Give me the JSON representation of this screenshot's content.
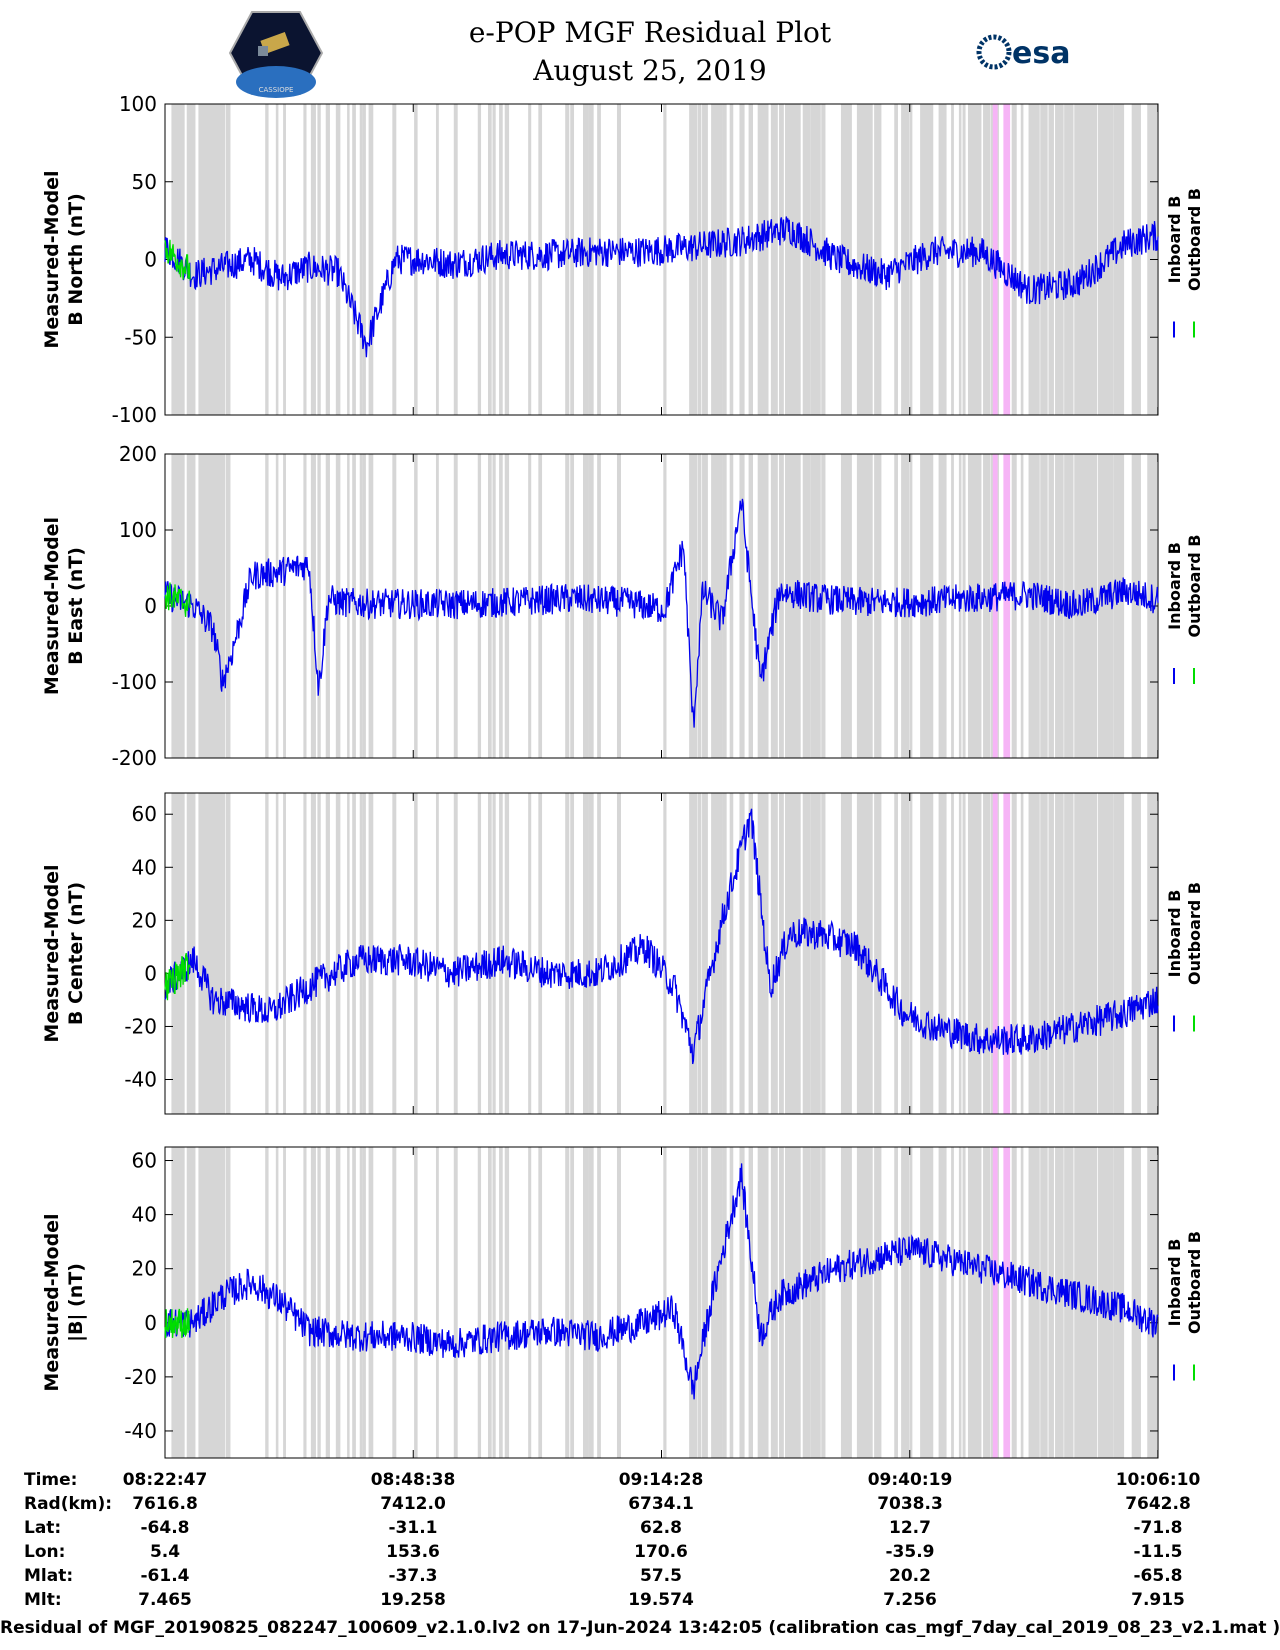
{
  "header": {
    "title_line1": "e-POP MGF Residual Plot",
    "title_line2": "August 25, 2019",
    "left_logo": "cassiope-satellite-logo",
    "right_logo": "esa-logo",
    "right_logo_text": "esa",
    "left_logo_text": "CASSIOPE"
  },
  "colors": {
    "inboard": "#0000ee",
    "outboard": "#00dd00",
    "gap": "#d6d6d6",
    "event": "#f6b4f6"
  },
  "chart_data": [
    {
      "type": "line",
      "title": "",
      "ylabel_line1": "Measured-Model",
      "ylabel_line2": "B North (nT)",
      "ylim": [
        -100,
        100
      ],
      "yticks": [
        -100,
        -50,
        0,
        50,
        100
      ],
      "series": [
        {
          "name": "Inboard B"
        },
        {
          "name": "Outboard B"
        }
      ],
      "x_minutes": [
        0,
        3,
        6,
        9,
        12,
        15,
        18,
        21,
        24,
        27,
        30,
        35,
        40,
        45,
        50,
        55,
        60,
        65,
        70,
        75,
        80,
        85,
        90,
        95,
        100,
        103
      ],
      "values": [
        8,
        -10,
        -5,
        0,
        -12,
        -5,
        -8,
        -55,
        0,
        0,
        -3,
        3,
        3,
        5,
        5,
        8,
        12,
        20,
        0,
        -10,
        5,
        5,
        -20,
        -15,
        10,
        15
      ]
    },
    {
      "type": "line",
      "ylabel_line1": "Measured-Model",
      "ylabel_line2": "B East (nT)",
      "ylim": [
        -200,
        200
      ],
      "yticks": [
        -200,
        -100,
        0,
        100,
        200
      ],
      "series": [
        {
          "name": "Inboard B"
        },
        {
          "name": "Outboard B"
        }
      ],
      "x_minutes": [
        0,
        3,
        5,
        6,
        7,
        9,
        12,
        15,
        16,
        17,
        18,
        21,
        24,
        30,
        36,
        42,
        48,
        52,
        54,
        55,
        56,
        58,
        60,
        62,
        64,
        68,
        72,
        78,
        84,
        90,
        95,
        100,
        103
      ],
      "values": [
        15,
        0,
        -30,
        -100,
        -60,
        40,
        45,
        55,
        -110,
        10,
        5,
        3,
        3,
        2,
        5,
        10,
        5,
        -5,
        80,
        -160,
        20,
        -20,
        140,
        -100,
        20,
        10,
        5,
        5,
        10,
        15,
        0,
        20,
        10
      ]
    },
    {
      "type": "line",
      "ylabel_line1": "Measured-Model",
      "ylabel_line2": "B Center (nT)",
      "ylim": [
        -53,
        68
      ],
      "yticks": [
        -40,
        -20,
        0,
        20,
        40,
        60
      ],
      "series": [
        {
          "name": "Inboard B"
        },
        {
          "name": "Outboard B"
        }
      ],
      "x_minutes": [
        0,
        3,
        5,
        8,
        11,
        15,
        20,
        25,
        30,
        35,
        40,
        45,
        50,
        53,
        55,
        58,
        61,
        63,
        65,
        68,
        72,
        77,
        80,
        85,
        90,
        95,
        100,
        103
      ],
      "values": [
        -5,
        5,
        -10,
        -12,
        -15,
        -5,
        5,
        5,
        0,
        5,
        0,
        0,
        10,
        -5,
        -30,
        20,
        60,
        -5,
        15,
        15,
        10,
        -15,
        -20,
        -25,
        -25,
        -20,
        -15,
        -10
      ]
    },
    {
      "type": "line",
      "ylabel_line1": "Measured-Model",
      "ylabel_line2": "|B| (nT)",
      "ylim": [
        -50,
        65
      ],
      "yticks": [
        -40,
        -20,
        0,
        20,
        40,
        60
      ],
      "series": [
        {
          "name": "Inboard B"
        },
        {
          "name": "Outboard B"
        }
      ],
      "x_minutes": [
        0,
        3,
        6,
        9,
        12,
        15,
        20,
        25,
        30,
        35,
        40,
        45,
        50,
        53,
        55,
        57,
        60,
        62,
        64,
        67,
        70,
        75,
        78,
        80,
        85,
        90,
        95,
        100,
        103
      ],
      "values": [
        0,
        0,
        10,
        15,
        8,
        -3,
        -5,
        -5,
        -8,
        -5,
        -3,
        -5,
        0,
        5,
        -25,
        10,
        55,
        -5,
        10,
        15,
        20,
        25,
        27,
        25,
        20,
        15,
        10,
        5,
        0
      ]
    }
  ],
  "table": {
    "row_labels": [
      "Time:",
      "Rad(km):",
      "Lat:",
      "Lon:",
      "Mlat:",
      "Mlt:"
    ],
    "columns": [
      {
        "time": "08:22:47",
        "rad": "7616.8",
        "lat": "-64.8",
        "lon": "5.4",
        "mlat": "-61.4",
        "mlt": "7.465"
      },
      {
        "time": "08:48:38",
        "rad": "7412.0",
        "lat": "-31.1",
        "lon": "153.6",
        "mlat": "-37.3",
        "mlt": "19.258"
      },
      {
        "time": "09:14:28",
        "rad": "6734.1",
        "lat": "62.8",
        "lon": "170.6",
        "mlat": "57.5",
        "mlt": "19.574"
      },
      {
        "time": "09:40:19",
        "rad": "7038.3",
        "lat": "12.7",
        "lon": "-35.9",
        "mlat": "20.2",
        "mlt": "7.256"
      },
      {
        "time": "10:06:10",
        "rad": "7642.8",
        "lat": "-71.8",
        "lon": "-11.5",
        "mlat": "-65.8",
        "mlt": "7.915"
      }
    ]
  },
  "footer": "Residual of MGF_20190825_082247_100609_v2.1.0.lv2 on 17-Jun-2024 13:42:05 (calibration cas_mgf_7day_cal_2019_08_23_v2.1.mat )"
}
